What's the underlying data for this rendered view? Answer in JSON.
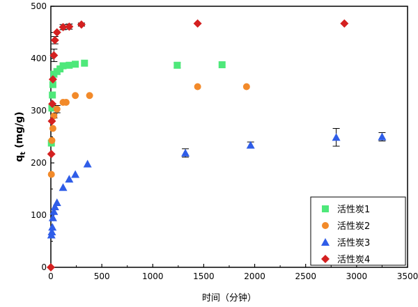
{
  "chart_data": {
    "type": "scatter",
    "xlabel": "时间（分钟）",
    "ylabel": "q",
    "ylabel_sub": "t",
    "ylabel_unit": " (mg/g)",
    "xlim": [
      0,
      3500
    ],
    "ylim": [
      0,
      500
    ],
    "xticks": [
      0,
      500,
      1000,
      1500,
      2000,
      2500,
      3000,
      3500
    ],
    "yticks": [
      0,
      100,
      200,
      300,
      400,
      500
    ],
    "grid": false,
    "legend_position": "bottom-right",
    "series": [
      {
        "name": "活性炭1",
        "marker": "square",
        "color": "#4ee87a",
        "x": [
          5,
          10,
          15,
          20,
          30,
          60,
          90,
          120,
          180,
          240,
          330,
          1240,
          1680
        ],
        "y": [
          238,
          305,
          330,
          350,
          370,
          375,
          380,
          386,
          387,
          389,
          391,
          387,
          388
        ]
      },
      {
        "name": "活性炭2",
        "marker": "circle",
        "color": "#f28a2a",
        "x": [
          5,
          10,
          20,
          30,
          60,
          120,
          150,
          240,
          380,
          1440,
          1920
        ],
        "y": [
          178,
          243,
          266,
          290,
          303,
          316,
          316,
          329,
          329,
          346,
          346
        ]
      },
      {
        "name": "活性炭3",
        "marker": "triangle",
        "color": "#2f5de8",
        "x": [
          5,
          10,
          15,
          20,
          30,
          40,
          60,
          120,
          180,
          240,
          360,
          1320,
          1960,
          2800,
          3250
        ],
        "y": [
          62,
          68,
          77,
          95,
          107,
          116,
          124,
          153,
          169,
          178,
          198,
          219,
          234,
          249,
          250
        ]
      },
      {
        "name": "活性炭4",
        "marker": "diamond",
        "color": "#d42020",
        "x": [
          0,
          5,
          10,
          15,
          20,
          30,
          40,
          60,
          120,
          180,
          300,
          1440,
          2880
        ],
        "y": [
          0,
          217,
          280,
          313,
          360,
          406,
          435,
          450,
          460,
          461,
          465,
          467,
          467
        ]
      }
    ]
  }
}
